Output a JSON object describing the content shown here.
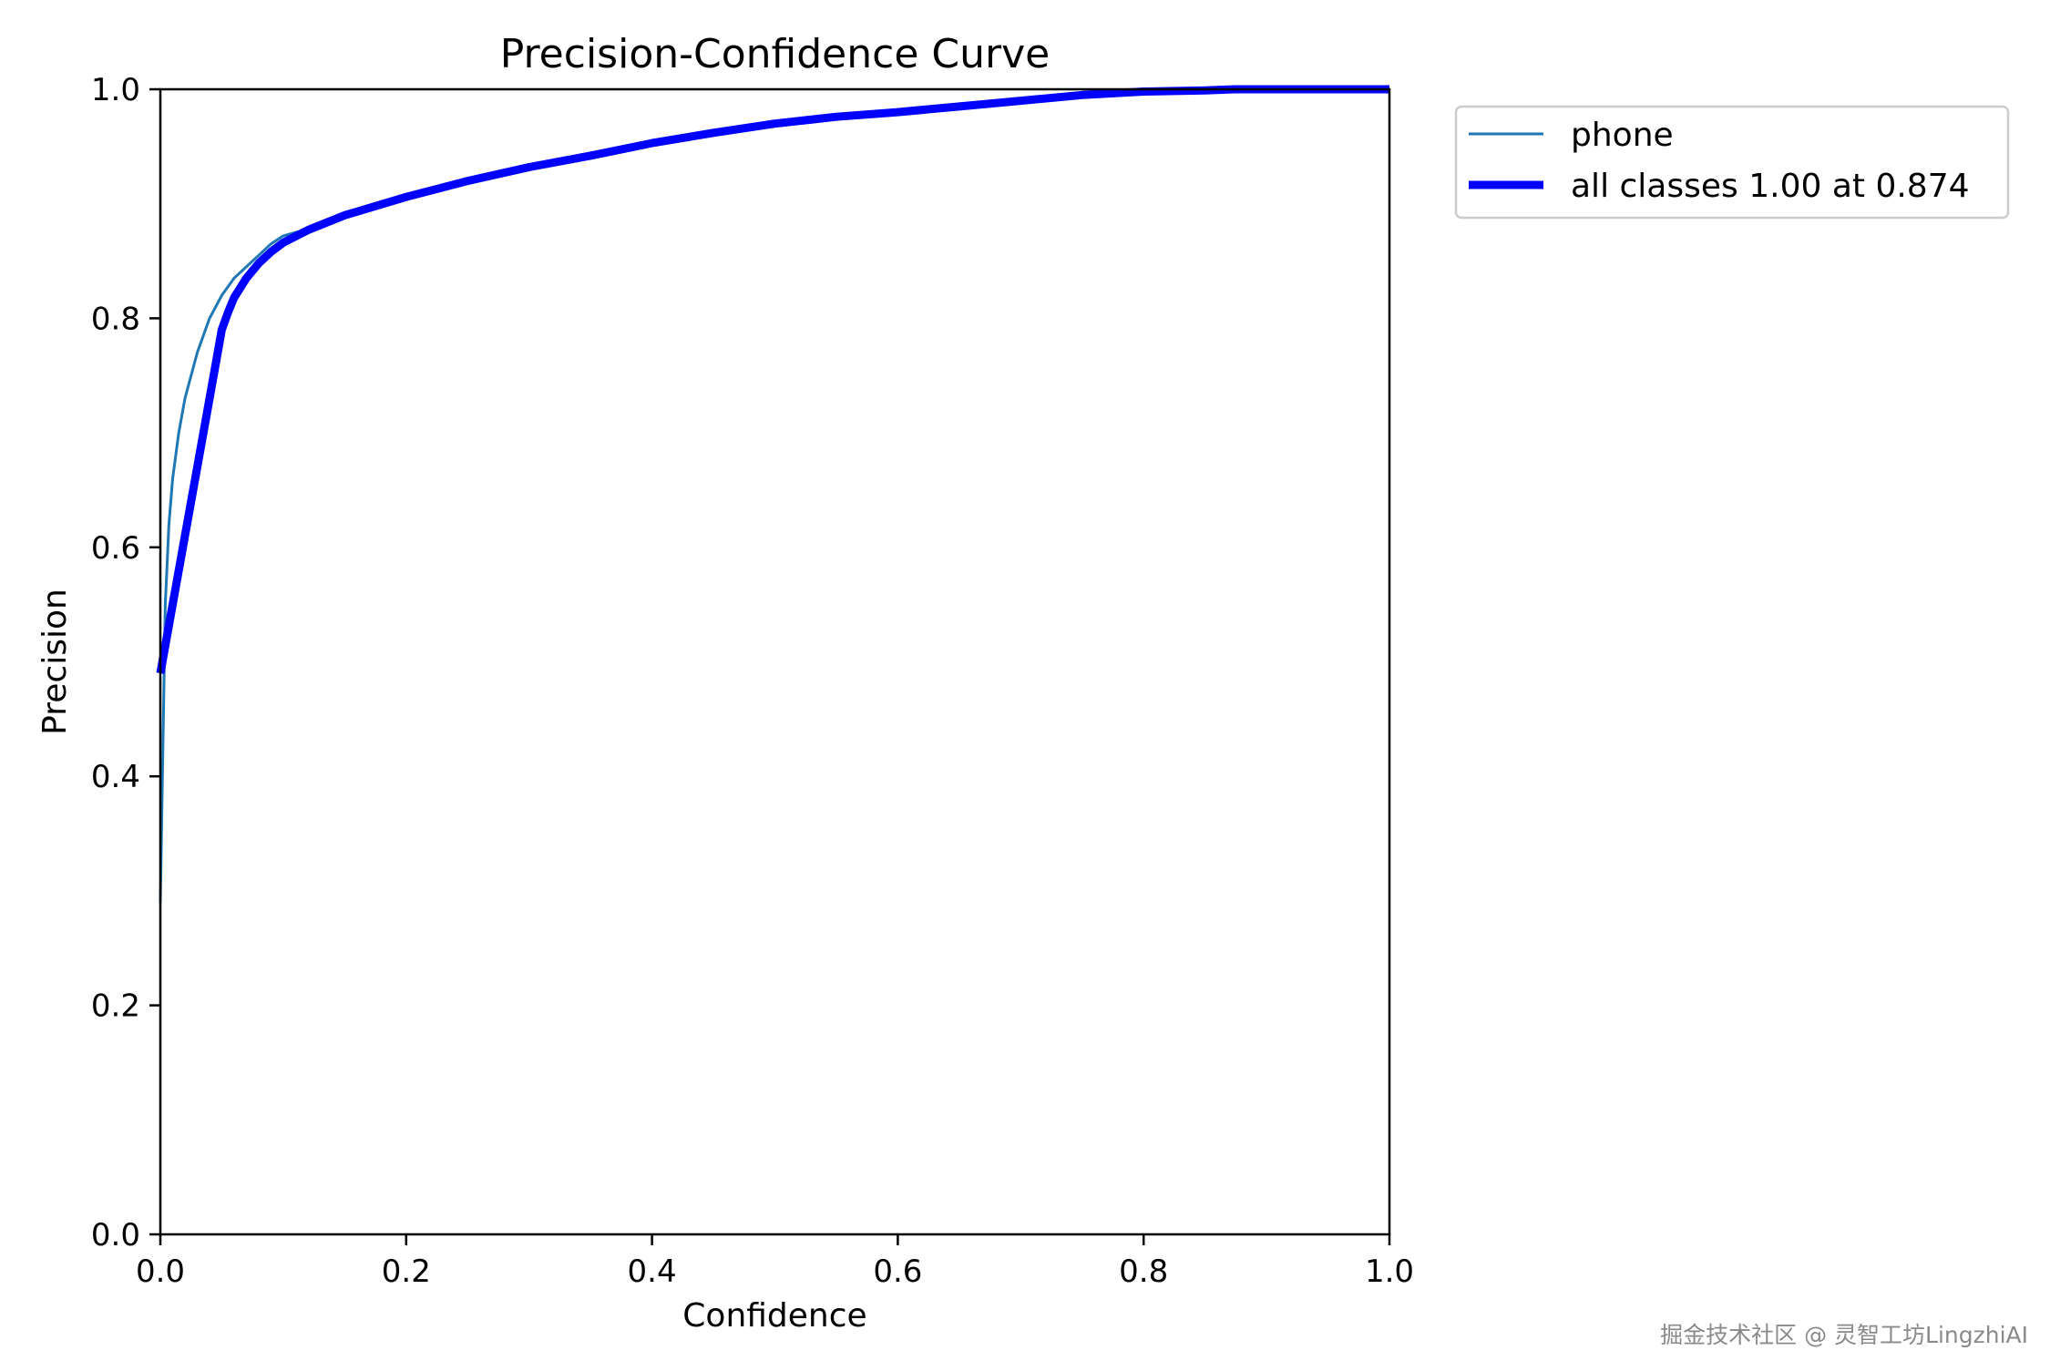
{
  "chart_data": {
    "type": "line",
    "title": "Precision-Confidence Curve",
    "xlabel": "Confidence",
    "ylabel": "Precision",
    "xlim": [
      0.0,
      1.0
    ],
    "ylim": [
      0.0,
      1.0
    ],
    "xticks": [
      "0.0",
      "0.2",
      "0.4",
      "0.6",
      "0.8",
      "1.0"
    ],
    "yticks": [
      "0.0",
      "0.2",
      "0.4",
      "0.6",
      "0.8",
      "1.0"
    ],
    "grid": false,
    "legend_position": "outside-top-right",
    "series": [
      {
        "name": "phone",
        "color": "#1f77b4",
        "line_width": "thin",
        "x": [
          0.0,
          0.002,
          0.004,
          0.007,
          0.01,
          0.015,
          0.02,
          0.03,
          0.04,
          0.05,
          0.06,
          0.07,
          0.08,
          0.09,
          0.1,
          0.12,
          0.15,
          0.2,
          0.25,
          0.3,
          0.35,
          0.4,
          0.45,
          0.5,
          0.55,
          0.6,
          0.65,
          0.7,
          0.75,
          0.8,
          0.85,
          0.9,
          0.95,
          1.0
        ],
        "y": [
          0.29,
          0.42,
          0.55,
          0.62,
          0.66,
          0.7,
          0.73,
          0.77,
          0.8,
          0.82,
          0.835,
          0.845,
          0.855,
          0.865,
          0.872,
          0.878,
          0.89,
          0.906,
          0.92,
          0.932,
          0.942,
          0.953,
          0.962,
          0.97,
          0.976,
          0.98,
          0.985,
          0.99,
          0.995,
          0.998,
          0.999,
          1.0,
          1.0,
          1.0
        ]
      },
      {
        "name": "all classes 1.00 at 0.874",
        "color": "#0000ff",
        "line_width": "thick",
        "x": [
          0.0,
          0.01,
          0.02,
          0.03,
          0.04,
          0.05,
          0.055,
          0.06,
          0.07,
          0.08,
          0.09,
          0.1,
          0.12,
          0.15,
          0.2,
          0.25,
          0.3,
          0.35,
          0.4,
          0.45,
          0.5,
          0.55,
          0.6,
          0.65,
          0.7,
          0.75,
          0.8,
          0.85,
          0.874,
          0.9,
          0.95,
          1.0
        ],
        "y": [
          0.49,
          0.55,
          0.61,
          0.67,
          0.73,
          0.79,
          0.805,
          0.818,
          0.835,
          0.848,
          0.858,
          0.866,
          0.877,
          0.89,
          0.906,
          0.92,
          0.932,
          0.942,
          0.953,
          0.962,
          0.97,
          0.976,
          0.98,
          0.985,
          0.99,
          0.995,
          0.998,
          0.999,
          1.0,
          1.0,
          1.0,
          1.0
        ]
      }
    ]
  },
  "watermark": "掘金技术社区 @ 灵智工坊LingzhiAI"
}
